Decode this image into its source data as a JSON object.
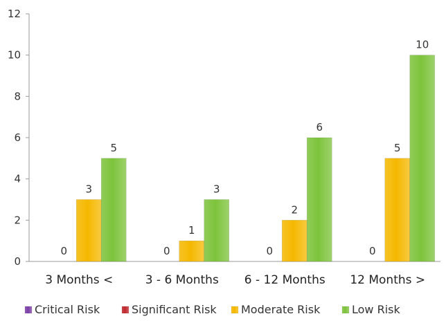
{
  "chart_data": {
    "type": "bar",
    "categories": [
      "3 Months <",
      "3 - 6 Months",
      "6 - 12 Months",
      "12 Months >"
    ],
    "series": [
      {
        "name": "Critical Risk",
        "values": [
          0,
          0,
          0,
          0
        ],
        "color": "#7b3fa6",
        "label_color": "#333333"
      },
      {
        "name": "Significant Risk",
        "values": [
          0,
          0,
          0,
          0
        ],
        "color": "#c0282d",
        "label_color": "#333333"
      },
      {
        "name": "Moderate Risk",
        "values": [
          3,
          1,
          2,
          5
        ],
        "color": "#f5b800",
        "label_color": "#333333"
      },
      {
        "name": "Low Risk",
        "values": [
          5,
          3,
          6,
          10
        ],
        "color": "#7dc33b",
        "label_color": "#333333"
      }
    ],
    "ylim": [
      0,
      12
    ],
    "yticks": [
      "0",
      "2",
      "4",
      "6",
      "8",
      "10",
      "12"
    ],
    "grid": false,
    "legend_position": "bottom",
    "title": "",
    "xlabel": "",
    "ylabel": ""
  }
}
